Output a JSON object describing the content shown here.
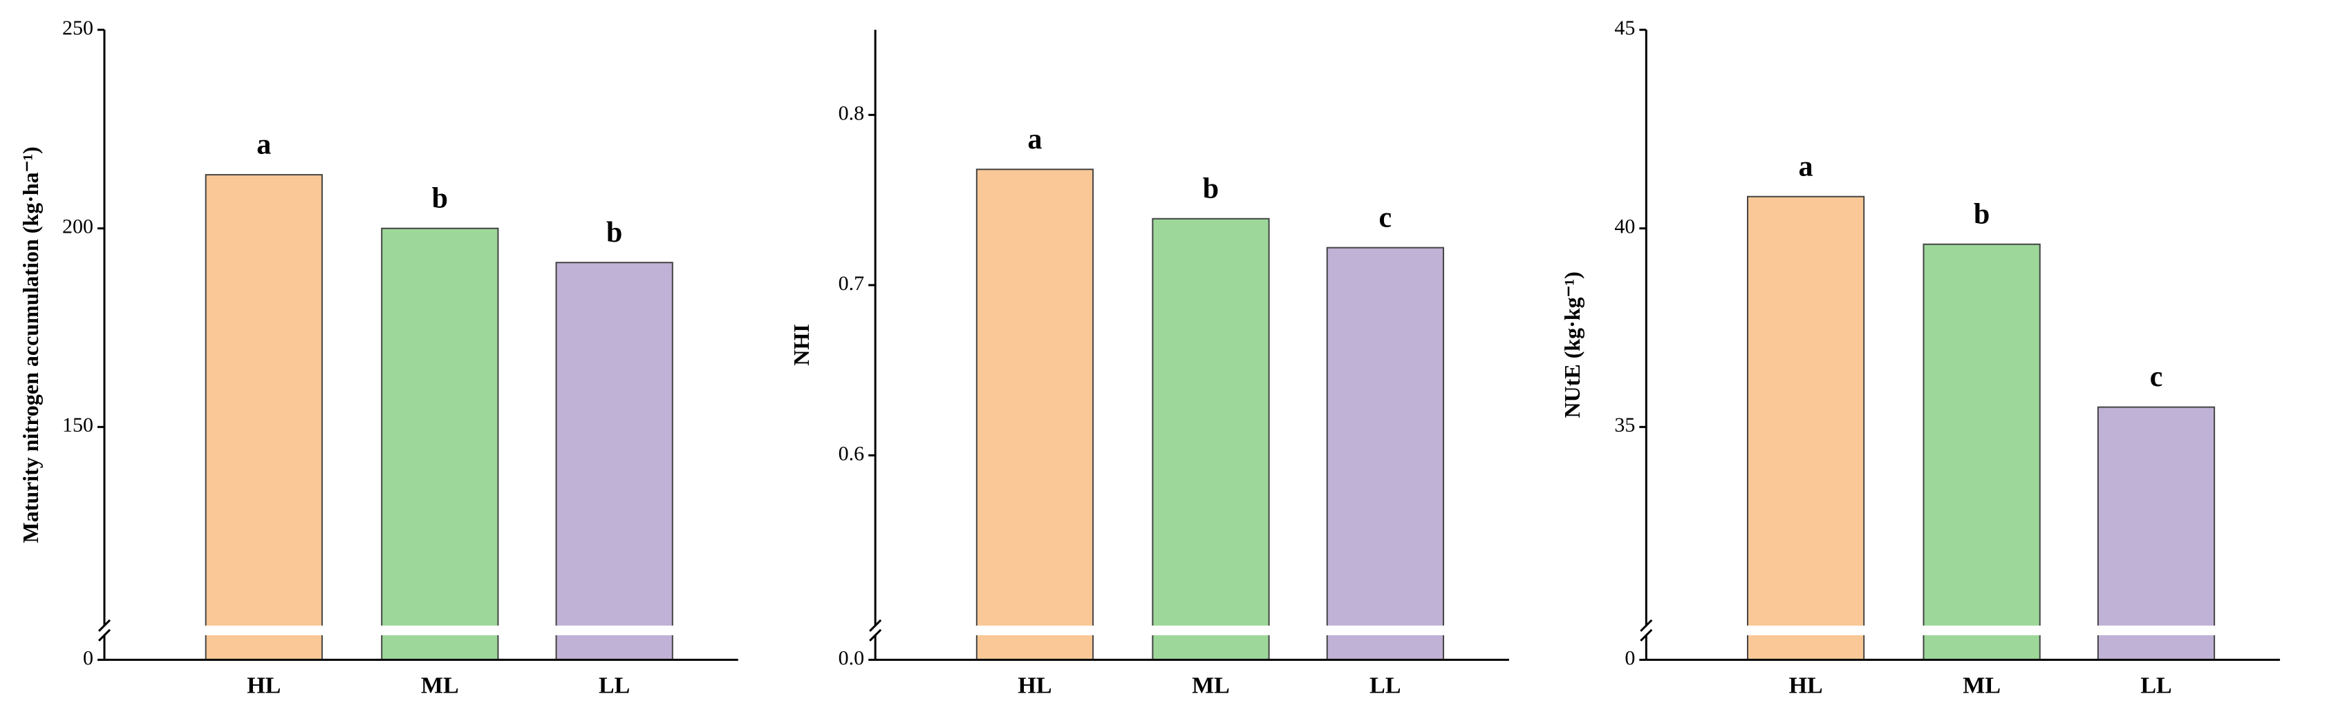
{
  "chart_data": [
    {
      "type": "bar",
      "y_label": "Maturity nitrogen accumulation (kg·ha⁻¹)",
      "categories": [
        "HL",
        "ML",
        "LL"
      ],
      "values": [
        213.5,
        200,
        191.4
      ],
      "annotations": [
        "a",
        "b",
        "b"
      ],
      "colors": [
        "#f9c896",
        "#9dd89a",
        "#c0b1d6"
      ],
      "ylim": [
        0,
        250
      ],
      "axis_break": 100,
      "yticks": [
        0,
        150,
        200,
        250
      ]
    },
    {
      "type": "bar",
      "y_label": "NHI",
      "categories": [
        "HL",
        "ML",
        "LL"
      ],
      "values": [
        0.768,
        0.739,
        0.722
      ],
      "annotations": [
        "a",
        "b",
        "c"
      ],
      "colors": [
        "#f9c896",
        "#9dd89a",
        "#c0b1d6"
      ],
      "ylim": [
        0,
        0.85
      ],
      "axis_break": 0.5,
      "yticks": [
        {
          "value": 0,
          "label": "0.0"
        },
        0.6,
        0.7,
        0.8
      ]
    },
    {
      "type": "bar",
      "y_label": "NUtE (kg·kg⁻¹)",
      "categories": [
        "HL",
        "ML",
        "LL"
      ],
      "values": [
        40.8,
        39.6,
        35.5
      ],
      "annotations": [
        "a",
        "b",
        "c"
      ],
      "colors": [
        "#f9c896",
        "#9dd89a",
        "#c0b1d6"
      ],
      "ylim": [
        0,
        45
      ],
      "axis_break": 30,
      "yticks": [
        0,
        35,
        40,
        45
      ]
    }
  ]
}
